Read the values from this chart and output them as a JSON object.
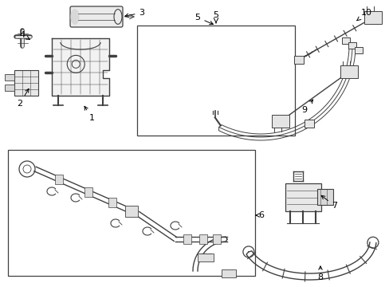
{
  "bg_color": "#ffffff",
  "line_color": "#404040",
  "label_color": "#000000",
  "fig_w": 4.89,
  "fig_h": 3.6,
  "dpi": 100
}
